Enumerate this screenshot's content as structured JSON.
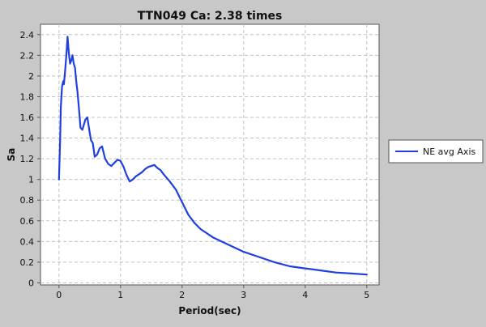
{
  "chart_data": {
    "type": "line",
    "title": "TTN049 Ca: 2.38 times",
    "xlabel": "Period(sec)",
    "ylabel": "Sa",
    "xlim": [
      -0.3,
      5.2
    ],
    "ylim": [
      -0.02,
      2.5
    ],
    "xticks": [
      0,
      1,
      2,
      3,
      4,
      5
    ],
    "xtick_labels": [
      "0",
      "1",
      "2",
      "3",
      "4",
      "5"
    ],
    "yticks": [
      0,
      0.2,
      0.4,
      0.6,
      0.8,
      1,
      1.2,
      1.4,
      1.6,
      1.8,
      2,
      2.2,
      2.4
    ],
    "ytick_labels": [
      "0",
      "0.2",
      "0.4",
      "0.6",
      "0.8",
      "1",
      "1.2",
      "1.4",
      "1.6",
      "1.8",
      "2",
      "2.2",
      "2.4"
    ],
    "grid": true,
    "legend_position": "right",
    "series": [
      {
        "name": "NE avg Axis",
        "color": "#1f3fe0",
        "x": [
          0.0,
          0.02,
          0.03,
          0.05,
          0.07,
          0.08,
          0.1,
          0.12,
          0.14,
          0.16,
          0.18,
          0.2,
          0.22,
          0.24,
          0.26,
          0.28,
          0.3,
          0.32,
          0.35,
          0.38,
          0.4,
          0.43,
          0.46,
          0.5,
          0.52,
          0.55,
          0.58,
          0.62,
          0.66,
          0.7,
          0.75,
          0.8,
          0.85,
          0.9,
          0.95,
          1.0,
          1.05,
          1.1,
          1.15,
          1.2,
          1.25,
          1.3,
          1.35,
          1.4,
          1.45,
          1.5,
          1.55,
          1.6,
          1.65,
          1.7,
          1.8,
          1.9,
          2.0,
          2.1,
          2.2,
          2.3,
          2.5,
          2.75,
          3.0,
          3.25,
          3.5,
          3.75,
          4.0,
          4.25,
          4.5,
          4.75,
          5.0
        ],
        "y": [
          1.0,
          1.4,
          1.7,
          1.9,
          1.95,
          1.92,
          2.05,
          2.2,
          2.38,
          2.22,
          2.12,
          2.15,
          2.2,
          2.12,
          2.08,
          1.95,
          1.85,
          1.72,
          1.5,
          1.48,
          1.52,
          1.58,
          1.6,
          1.45,
          1.38,
          1.35,
          1.22,
          1.24,
          1.3,
          1.32,
          1.2,
          1.15,
          1.13,
          1.16,
          1.19,
          1.18,
          1.12,
          1.04,
          0.98,
          1.0,
          1.03,
          1.05,
          1.07,
          1.1,
          1.12,
          1.13,
          1.14,
          1.11,
          1.09,
          1.05,
          0.98,
          0.9,
          0.78,
          0.66,
          0.58,
          0.52,
          0.44,
          0.37,
          0.3,
          0.25,
          0.2,
          0.16,
          0.14,
          0.12,
          0.1,
          0.09,
          0.08
        ]
      }
    ]
  }
}
